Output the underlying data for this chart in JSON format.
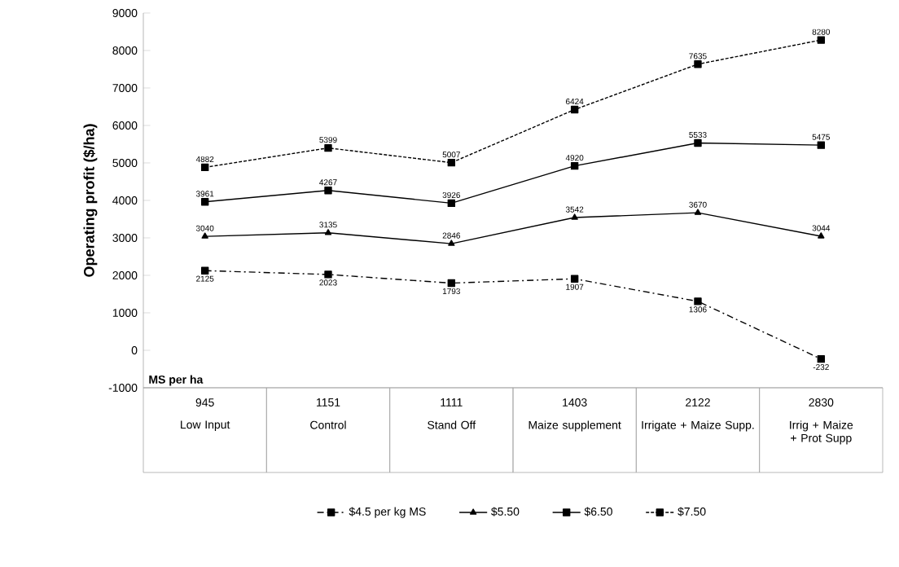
{
  "chart_data": {
    "type": "line",
    "ylabel": "Operating profit ($/ha)",
    "categories": [
      "Low Input",
      "Control",
      "Stand Off",
      "Maize supplement",
      "Irrigate + Maize Supp.",
      "Irrig + Maize + Prot Supp"
    ],
    "series": [
      {
        "name": "$4.5 per kg MS",
        "color": "#000000",
        "marker": "square",
        "line_style": "dashed",
        "values": [
          2125,
          2023,
          1793,
          1907,
          1306,
          -232
        ]
      },
      {
        "name": "$5.50",
        "color": "#000000",
        "marker": "triangle",
        "line_style": "solid",
        "values": [
          3040,
          3135,
          2846,
          3542,
          3670,
          3044
        ]
      },
      {
        "name": "$6.50",
        "color": "#000000",
        "marker": "square",
        "line_style": "solid",
        "values": [
          3961,
          4267,
          3926,
          4920,
          5533,
          5475
        ]
      },
      {
        "name": "$7.50",
        "color": "#000000",
        "marker": "square",
        "line_style": "dotted",
        "values": [
          4882,
          5399,
          5007,
          6424,
          7635,
          8280
        ]
      }
    ],
    "annotations": [
      "MS per ha",
      "945",
      "1151",
      "1111",
      "1403",
      "2122",
      "2830"
    ],
    "ylim": [
      -1000,
      9000
    ],
    "yticks": [
      -1000,
      0,
      1000,
      2000,
      3000,
      4000,
      5000,
      6000,
      7000,
      8000,
      9000
    ],
    "data_labels": true,
    "legend": "bottom",
    "grid": false
  }
}
